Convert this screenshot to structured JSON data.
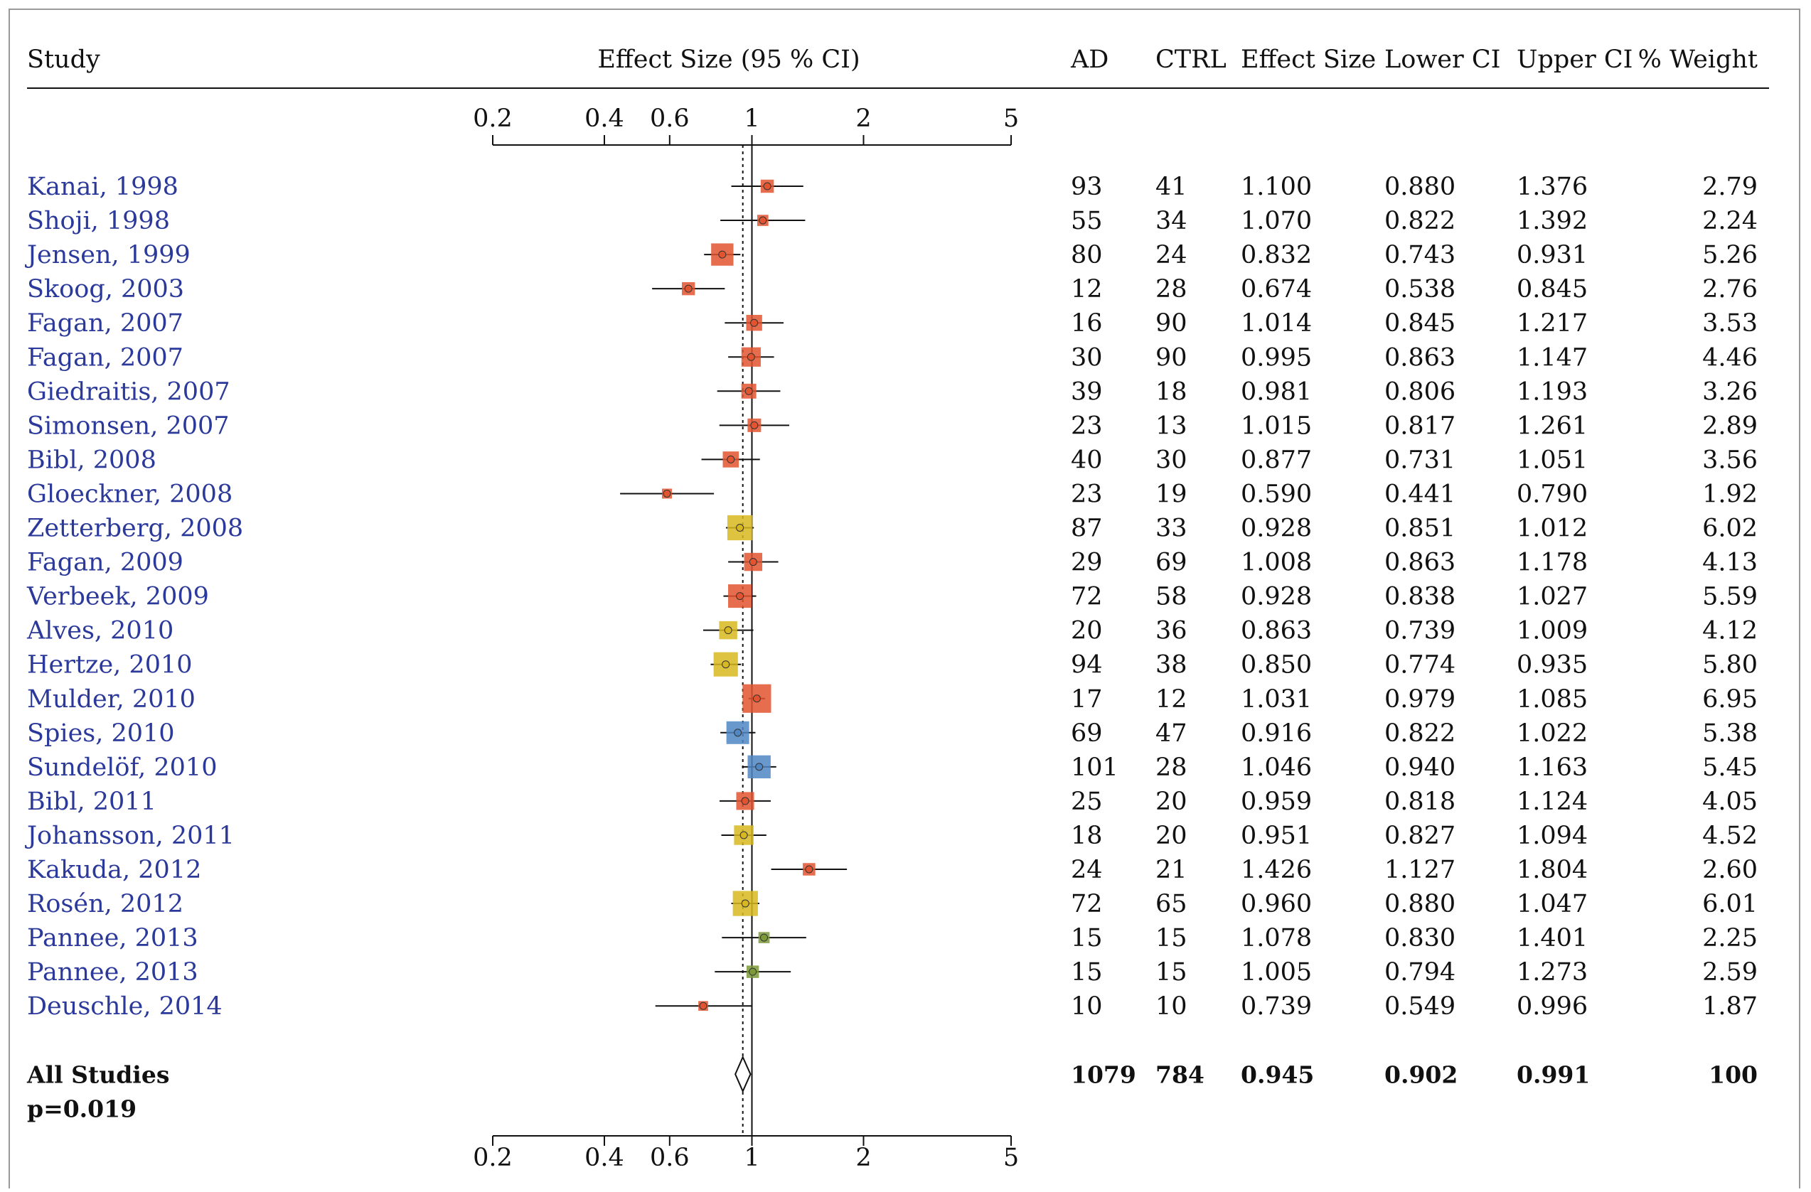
{
  "headers": {
    "study": "Study",
    "effect_ci": "Effect Size (95 % CI)",
    "ad": "AD",
    "ctrl": "CTRL",
    "effect_size": "Effect Size",
    "lower_ci": "Lower CI",
    "upper_ci": "Upper CI",
    "weight": "% Weight"
  },
  "colors": {
    "study_text": "#2b3a9a",
    "red": "#e2542f",
    "yellow": "#d8b820",
    "blue": "#4f86c4",
    "green": "#7d9a3a"
  },
  "chart_data": {
    "type": "forest",
    "x_scale": "log",
    "xlim": [
      0.2,
      5
    ],
    "x_ticks": [
      {
        "value": 0.2,
        "label": "0.2"
      },
      {
        "value": 0.4,
        "label": "0.4"
      },
      {
        "value": 0.6,
        "label": "0.6"
      },
      {
        "value": 1,
        "label": "1"
      },
      {
        "value": 2,
        "label": "2"
      },
      {
        "value": 5,
        "label": "5"
      }
    ],
    "reference_line": 1,
    "pooled_line": 0.945,
    "studies": [
      {
        "study": "Kanai, 1998",
        "ad": "93",
        "ctrl": "41",
        "es": 1.1,
        "lo": 0.88,
        "hi": 1.376,
        "weight": 2.79,
        "es_label": "1.100",
        "lo_label": "0.880",
        "hi_label": "1.376",
        "w_label": "2.79",
        "color": "red"
      },
      {
        "study": "Shoji, 1998",
        "ad": "55",
        "ctrl": "34",
        "es": 1.07,
        "lo": 0.822,
        "hi": 1.392,
        "weight": 2.24,
        "es_label": "1.070",
        "lo_label": "0.822",
        "hi_label": "1.392",
        "w_label": "2.24",
        "color": "red"
      },
      {
        "study": "Jensen, 1999",
        "ad": "80",
        "ctrl": "24",
        "es": 0.832,
        "lo": 0.743,
        "hi": 0.931,
        "weight": 5.26,
        "es_label": "0.832",
        "lo_label": "0.743",
        "hi_label": "0.931",
        "w_label": "5.26",
        "color": "red"
      },
      {
        "study": "Skoog, 2003",
        "ad": "12",
        "ctrl": "28",
        "es": 0.674,
        "lo": 0.538,
        "hi": 0.845,
        "weight": 2.76,
        "es_label": "0.674",
        "lo_label": "0.538",
        "hi_label": "0.845",
        "w_label": "2.76",
        "color": "red"
      },
      {
        "study": "Fagan, 2007",
        "ad": "16",
        "ctrl": "90",
        "es": 1.014,
        "lo": 0.845,
        "hi": 1.217,
        "weight": 3.53,
        "es_label": "1.014",
        "lo_label": "0.845",
        "hi_label": "1.217",
        "w_label": "3.53",
        "color": "red"
      },
      {
        "study": "Fagan, 2007",
        "ad": "30",
        "ctrl": "90",
        "es": 0.995,
        "lo": 0.863,
        "hi": 1.147,
        "weight": 4.46,
        "es_label": "0.995",
        "lo_label": "0.863",
        "hi_label": "1.147",
        "w_label": "4.46",
        "color": "red"
      },
      {
        "study": "Giedraitis, 2007",
        "ad": "39",
        "ctrl": "18",
        "es": 0.981,
        "lo": 0.806,
        "hi": 1.193,
        "weight": 3.26,
        "es_label": "0.981",
        "lo_label": "0.806",
        "hi_label": "1.193",
        "w_label": "3.26",
        "color": "red"
      },
      {
        "study": "Simonsen, 2007",
        "ad": "23",
        "ctrl": "13",
        "es": 1.015,
        "lo": 0.817,
        "hi": 1.261,
        "weight": 2.89,
        "es_label": "1.015",
        "lo_label": "0.817",
        "hi_label": "1.261",
        "w_label": "2.89",
        "color": "red"
      },
      {
        "study": "Bibl, 2008",
        "ad": "40",
        "ctrl": "30",
        "es": 0.877,
        "lo": 0.731,
        "hi": 1.051,
        "weight": 3.56,
        "es_label": "0.877",
        "lo_label": "0.731",
        "hi_label": "1.051",
        "w_label": "3.56",
        "color": "red"
      },
      {
        "study": "Gloeckner, 2008",
        "ad": "23",
        "ctrl": "19",
        "es": 0.59,
        "lo": 0.441,
        "hi": 0.79,
        "weight": 1.92,
        "es_label": "0.590",
        "lo_label": "0.441",
        "hi_label": "0.790",
        "w_label": "1.92",
        "color": "red"
      },
      {
        "study": "Zetterberg, 2008",
        "ad": "87",
        "ctrl": "33",
        "es": 0.928,
        "lo": 0.851,
        "hi": 1.012,
        "weight": 6.02,
        "es_label": "0.928",
        "lo_label": "0.851",
        "hi_label": "1.012",
        "w_label": "6.02",
        "color": "yellow"
      },
      {
        "study": "Fagan, 2009",
        "ad": "29",
        "ctrl": "69",
        "es": 1.008,
        "lo": 0.863,
        "hi": 1.178,
        "weight": 4.13,
        "es_label": "1.008",
        "lo_label": "0.863",
        "hi_label": "1.178",
        "w_label": "4.13",
        "color": "red"
      },
      {
        "study": "Verbeek, 2009",
        "ad": "72",
        "ctrl": "58",
        "es": 0.928,
        "lo": 0.838,
        "hi": 1.027,
        "weight": 5.59,
        "es_label": "0.928",
        "lo_label": "0.838",
        "hi_label": "1.027",
        "w_label": "5.59",
        "color": "red"
      },
      {
        "study": "Alves, 2010",
        "ad": "20",
        "ctrl": "36",
        "es": 0.863,
        "lo": 0.739,
        "hi": 1.009,
        "weight": 4.12,
        "es_label": "0.863",
        "lo_label": "0.739",
        "hi_label": "1.009",
        "w_label": "4.12",
        "color": "yellow"
      },
      {
        "study": "Hertze, 2010",
        "ad": "94",
        "ctrl": "38",
        "es": 0.85,
        "lo": 0.774,
        "hi": 0.935,
        "weight": 5.8,
        "es_label": "0.850",
        "lo_label": "0.774",
        "hi_label": "0.935",
        "w_label": "5.80",
        "color": "yellow"
      },
      {
        "study": "Mulder, 2010",
        "ad": "17",
        "ctrl": "12",
        "es": 1.031,
        "lo": 0.979,
        "hi": 1.085,
        "weight": 6.95,
        "es_label": "1.031",
        "lo_label": "0.979",
        "hi_label": "1.085",
        "w_label": "6.95",
        "color": "red"
      },
      {
        "study": "Spies, 2010",
        "ad": "69",
        "ctrl": "47",
        "es": 0.916,
        "lo": 0.822,
        "hi": 1.022,
        "weight": 5.38,
        "es_label": "0.916",
        "lo_label": "0.822",
        "hi_label": "1.022",
        "w_label": "5.38",
        "color": "blue"
      },
      {
        "study": "Sundelöf, 2010",
        "ad": "101",
        "ctrl": "28",
        "es": 1.046,
        "lo": 0.94,
        "hi": 1.163,
        "weight": 5.45,
        "es_label": "1.046",
        "lo_label": "0.940",
        "hi_label": "1.163",
        "w_label": "5.45",
        "color": "blue"
      },
      {
        "study": "Bibl, 2011",
        "ad": "25",
        "ctrl": "20",
        "es": 0.959,
        "lo": 0.818,
        "hi": 1.124,
        "weight": 4.05,
        "es_label": "0.959",
        "lo_label": "0.818",
        "hi_label": "1.124",
        "w_label": "4.05",
        "color": "red"
      },
      {
        "study": "Johansson, 2011",
        "ad": "18",
        "ctrl": "20",
        "es": 0.951,
        "lo": 0.827,
        "hi": 1.094,
        "weight": 4.52,
        "es_label": "0.951",
        "lo_label": "0.827",
        "hi_label": "1.094",
        "w_label": "4.52",
        "color": "yellow"
      },
      {
        "study": "Kakuda, 2012",
        "ad": "24",
        "ctrl": "21",
        "es": 1.426,
        "lo": 1.127,
        "hi": 1.804,
        "weight": 2.6,
        "es_label": "1.426",
        "lo_label": "1.127",
        "hi_label": "1.804",
        "w_label": "2.60",
        "color": "red"
      },
      {
        "study": "Rosén, 2012",
        "ad": "72",
        "ctrl": "65",
        "es": 0.96,
        "lo": 0.88,
        "hi": 1.047,
        "weight": 6.01,
        "es_label": "0.960",
        "lo_label": "0.880",
        "hi_label": "1.047",
        "w_label": "6.01",
        "color": "yellow"
      },
      {
        "study": "Pannee, 2013",
        "ad": "15",
        "ctrl": "15",
        "es": 1.078,
        "lo": 0.83,
        "hi": 1.401,
        "weight": 2.25,
        "es_label": "1.078",
        "lo_label": "0.830",
        "hi_label": "1.401",
        "w_label": "2.25",
        "color": "green"
      },
      {
        "study": "Pannee, 2013",
        "ad": "15",
        "ctrl": "15",
        "es": 1.005,
        "lo": 0.794,
        "hi": 1.273,
        "weight": 2.59,
        "es_label": "1.005",
        "lo_label": "0.794",
        "hi_label": "1.273",
        "w_label": "2.59",
        "color": "green"
      },
      {
        "study": "Deuschle, 2014",
        "ad": "10",
        "ctrl": "10",
        "es": 0.739,
        "lo": 0.549,
        "hi": 0.996,
        "weight": 1.87,
        "es_label": "0.739",
        "lo_label": "0.549",
        "hi_label": "0.996",
        "w_label": "1.87",
        "color": "red"
      }
    ],
    "summary": {
      "label": "All Studies",
      "p_value": "p=0.019",
      "ad": "1079",
      "ctrl": "784",
      "es": 0.945,
      "lo": 0.902,
      "hi": 0.991,
      "es_label": "0.945",
      "lo_label": "0.902",
      "hi_label": "0.991",
      "weight": "100"
    }
  }
}
